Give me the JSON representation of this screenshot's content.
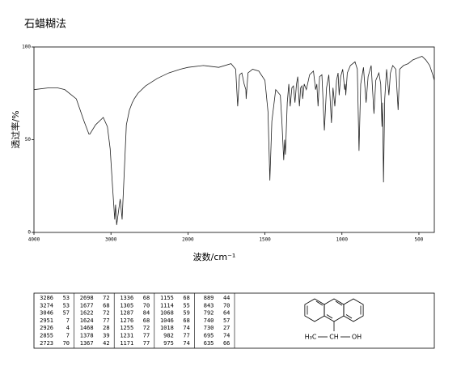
{
  "chart_data": {
    "type": "line",
    "title": "石蜡糊法",
    "x_label": "波数/cm⁻¹",
    "y_label": "透过率/%",
    "xlim": [
      4000,
      400
    ],
    "x_scale_break": 2000,
    "ylim": [
      0,
      100
    ],
    "xticks": [
      4000,
      3000,
      2000,
      1500,
      1000,
      500
    ],
    "yticks": [
      0,
      50,
      100
    ],
    "series": [
      {
        "color": "#222222",
        "x": [
          4000,
          3800,
          3700,
          3600,
          3450,
          3350,
          3286,
          3274,
          3200,
          3100,
          3046,
          3010,
          2980,
          2951,
          2940,
          2926,
          2900,
          2880,
          2855,
          2830,
          2800,
          2760,
          2723,
          2710,
          2698,
          2650,
          2550,
          2400,
          2250,
          2100,
          2000,
          1900,
          1800,
          1720,
          1690,
          1677,
          1665,
          1650,
          1635,
          1624,
          1622,
          1610,
          1580,
          1540,
          1500,
          1480,
          1468,
          1455,
          1430,
          1400,
          1390,
          1378,
          1372,
          1367,
          1355,
          1345,
          1336,
          1325,
          1315,
          1305,
          1295,
          1287,
          1282,
          1276,
          1268,
          1260,
          1255,
          1245,
          1231,
          1210,
          1185,
          1171,
          1163,
          1155,
          1145,
          1130,
          1114,
          1100,
          1085,
          1068,
          1058,
          1046,
          1035,
          1025,
          1018,
          1008,
          995,
          982,
          978,
          975,
          965,
          945,
          915,
          900,
          889,
          878,
          860,
          843,
          830,
          810,
          792,
          780,
          760,
          748,
          740,
          736,
          730,
          722,
          710,
          695,
          685,
          670,
          650,
          635,
          625,
          600,
          570,
          540,
          510,
          480,
          455,
          430,
          410,
          400
        ],
        "values": [
          77,
          78,
          78,
          77,
          72,
          60,
          53,
          53,
          58,
          62,
          57,
          45,
          25,
          7,
          15,
          4,
          12,
          18,
          7,
          30,
          58,
          66,
          70,
          71,
          72,
          75,
          79,
          83,
          86,
          88,
          89,
          90,
          89,
          91,
          88,
          68,
          85,
          86,
          80,
          77,
          72,
          86,
          88,
          87,
          82,
          65,
          28,
          60,
          77,
          74,
          60,
          39,
          50,
          42,
          70,
          80,
          68,
          78,
          79,
          70,
          80,
          84,
          76,
          68,
          78,
          79,
          72,
          80,
          77,
          85,
          87,
          77,
          80,
          68,
          84,
          85,
          55,
          78,
          85,
          59,
          78,
          68,
          82,
          86,
          74,
          84,
          88,
          77,
          80,
          74,
          86,
          90,
          92,
          88,
          44,
          80,
          89,
          70,
          84,
          90,
          64,
          82,
          86,
          80,
          57,
          70,
          27,
          72,
          88,
          74,
          86,
          90,
          88,
          66,
          88,
          90,
          91,
          93,
          94,
          95,
          93,
          90,
          85,
          82
        ]
      }
    ]
  },
  "peak_table": [
    [
      3286,
      53
    ],
    [
      3274,
      53
    ],
    [
      3046,
      57
    ],
    [
      2951,
      7
    ],
    [
      2926,
      4
    ],
    [
      2855,
      7
    ],
    [
      2723,
      70
    ],
    [
      2698,
      72
    ],
    [
      1677,
      68
    ],
    [
      1622,
      72
    ],
    [
      1624,
      77
    ],
    [
      1468,
      28
    ],
    [
      1378,
      39
    ],
    [
      1367,
      42
    ],
    [
      1336,
      68
    ],
    [
      1305,
      70
    ],
    [
      1287,
      84
    ],
    [
      1276,
      68
    ],
    [
      1255,
      72
    ],
    [
      1231,
      77
    ],
    [
      1171,
      77
    ],
    [
      1155,
      68
    ],
    [
      1114,
      55
    ],
    [
      1068,
      59
    ],
    [
      1046,
      68
    ],
    [
      1018,
      74
    ],
    [
      982,
      77
    ],
    [
      975,
      74
    ],
    [
      889,
      44
    ],
    [
      843,
      70
    ],
    [
      792,
      64
    ],
    [
      740,
      57
    ],
    [
      730,
      27
    ],
    [
      695,
      74
    ],
    [
      635,
      66
    ]
  ],
  "structure_labels": [
    "H₃C",
    "CH",
    "OH"
  ]
}
